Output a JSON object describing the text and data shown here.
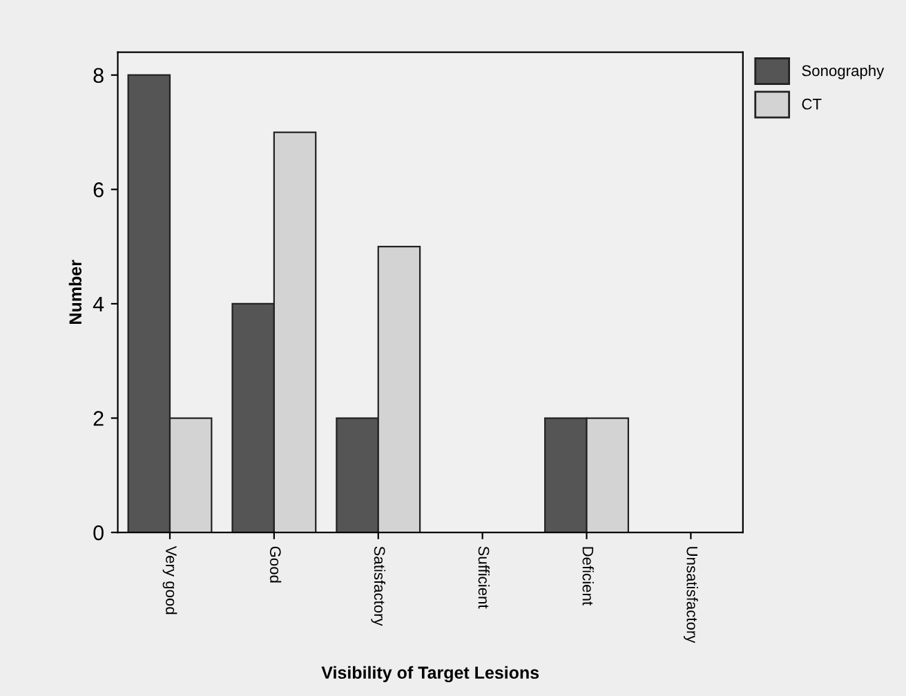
{
  "chart_data": {
    "type": "bar",
    "xlabel": "Visibility of Target Lesions",
    "ylabel": "Number",
    "categories": [
      "Very good",
      "Good",
      "Satisfactory",
      "Sufficient",
      "Deficient",
      "Unsatisfactory"
    ],
    "series": [
      {
        "name": "Sonography",
        "color": "#555555",
        "values": [
          8,
          4,
          2,
          0,
          2,
          0
        ]
      },
      {
        "name": "CT",
        "color": "#d3d3d3",
        "values": [
          2,
          7,
          5,
          0,
          2,
          0
        ]
      }
    ],
    "ylim": [
      0,
      8.4
    ],
    "yticks": [
      0,
      2,
      4,
      6,
      8
    ],
    "grid": false,
    "legend": "top right"
  }
}
